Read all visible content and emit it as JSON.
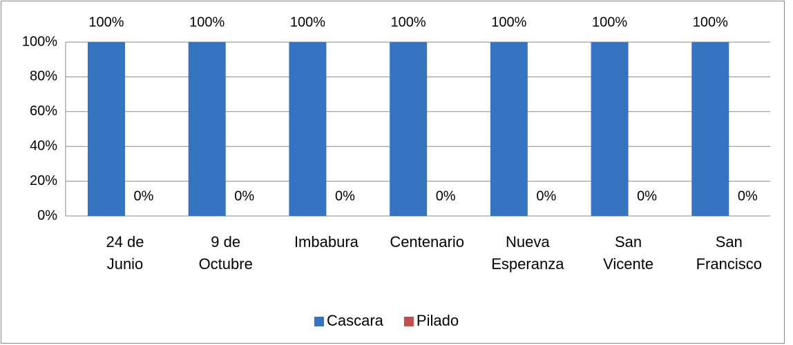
{
  "chart_data": {
    "type": "bar",
    "categories": [
      "24 de\nJunio",
      "9 de\nOctubre",
      "Imbabura",
      "Centenario",
      "Nueva\nEsperanza",
      "San\nVicente",
      "San\nFrancisco"
    ],
    "series": [
      {
        "name": "Cascara",
        "color": "#3673c0",
        "values": [
          100,
          100,
          100,
          100,
          100,
          100,
          100
        ],
        "value_labels": [
          "100%",
          "100%",
          "100%",
          "100%",
          "100%",
          "100%",
          "100%"
        ]
      },
      {
        "name": "Pilado",
        "color": "#c0504d",
        "values": [
          0,
          0,
          0,
          0,
          0,
          0,
          0
        ],
        "value_labels": [
          "0%",
          "0%",
          "0%",
          "0%",
          "0%",
          "0%",
          "0%"
        ]
      }
    ],
    "ylim": [
      0,
      100
    ],
    "yticks": [
      {
        "value": 0,
        "label": "0%"
      },
      {
        "value": 20,
        "label": "20%"
      },
      {
        "value": 40,
        "label": "40%"
      },
      {
        "value": 60,
        "label": "60%"
      },
      {
        "value": 80,
        "label": "80%"
      },
      {
        "value": 100,
        "label": "100%"
      }
    ],
    "grid": true,
    "legend": "bottom"
  }
}
